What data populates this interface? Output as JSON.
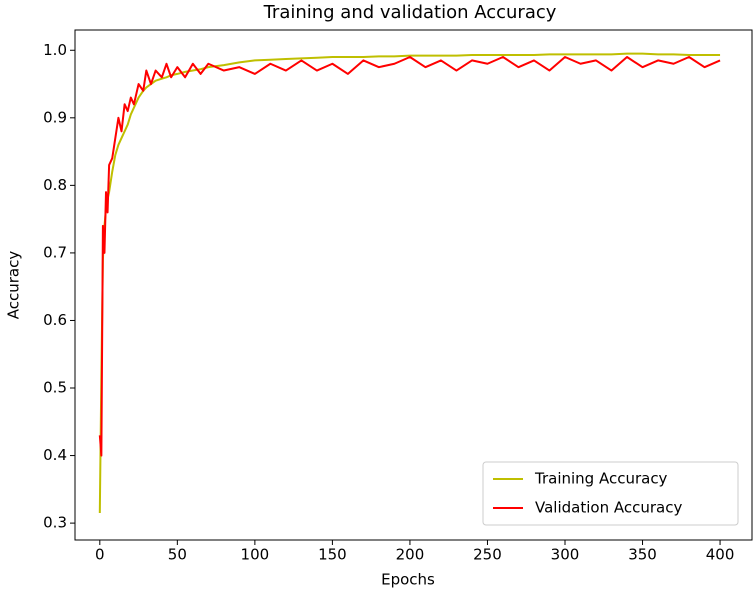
{
  "chart_data": {
    "type": "line",
    "title": "Training and validation Accuracy",
    "x_label": "Epochs",
    "y_label": "Accuracy",
    "x": [
      0,
      1,
      2,
      3,
      4,
      5,
      6,
      8,
      10,
      12,
      14,
      16,
      18,
      20,
      22,
      25,
      28,
      30,
      33,
      36,
      40,
      43,
      46,
      50,
      55,
      60,
      65,
      70,
      80,
      90,
      100,
      110,
      120,
      130,
      140,
      150,
      160,
      170,
      180,
      190,
      200,
      210,
      220,
      230,
      240,
      250,
      260,
      270,
      280,
      290,
      300,
      310,
      320,
      330,
      340,
      350,
      360,
      370,
      380,
      390,
      400
    ],
    "series": [
      {
        "name": "Training Accuracy",
        "color": "#bfbf00",
        "values": [
          0.315,
          0.52,
          0.69,
          0.74,
          0.765,
          0.78,
          0.79,
          0.82,
          0.845,
          0.86,
          0.87,
          0.88,
          0.89,
          0.905,
          0.915,
          0.93,
          0.94,
          0.945,
          0.95,
          0.955,
          0.958,
          0.96,
          0.963,
          0.965,
          0.968,
          0.97,
          0.972,
          0.975,
          0.978,
          0.982,
          0.985,
          0.986,
          0.987,
          0.988,
          0.989,
          0.99,
          0.99,
          0.99,
          0.991,
          0.991,
          0.992,
          0.992,
          0.992,
          0.992,
          0.993,
          0.993,
          0.993,
          0.993,
          0.993,
          0.994,
          0.994,
          0.994,
          0.994,
          0.994,
          0.995,
          0.995,
          0.994,
          0.994,
          0.993,
          0.993,
          0.993
        ]
      },
      {
        "name": "Validation Accuracy",
        "color": "#ff0000",
        "values": [
          0.43,
          0.4,
          0.74,
          0.7,
          0.79,
          0.76,
          0.83,
          0.84,
          0.87,
          0.9,
          0.88,
          0.92,
          0.91,
          0.93,
          0.92,
          0.95,
          0.94,
          0.97,
          0.95,
          0.97,
          0.96,
          0.98,
          0.96,
          0.975,
          0.96,
          0.98,
          0.965,
          0.98,
          0.97,
          0.975,
          0.965,
          0.98,
          0.97,
          0.985,
          0.97,
          0.98,
          0.965,
          0.985,
          0.975,
          0.98,
          0.99,
          0.975,
          0.985,
          0.97,
          0.985,
          0.98,
          0.99,
          0.975,
          0.985,
          0.97,
          0.99,
          0.98,
          0.985,
          0.97,
          0.99,
          0.975,
          0.985,
          0.98,
          0.99,
          0.975,
          0.985
        ]
      }
    ],
    "xlim": [
      -16,
      420.6
    ],
    "ylim": [
      0.275,
      1.03
    ],
    "xticks": [
      0,
      50,
      100,
      150,
      200,
      250,
      300,
      350,
      400
    ],
    "yticks": [
      0.3,
      0.4,
      0.5,
      0.6,
      0.7,
      0.8,
      0.9,
      {
        "value": 1,
        "label": "1.0"
      }
    ],
    "legend": "lower right"
  }
}
